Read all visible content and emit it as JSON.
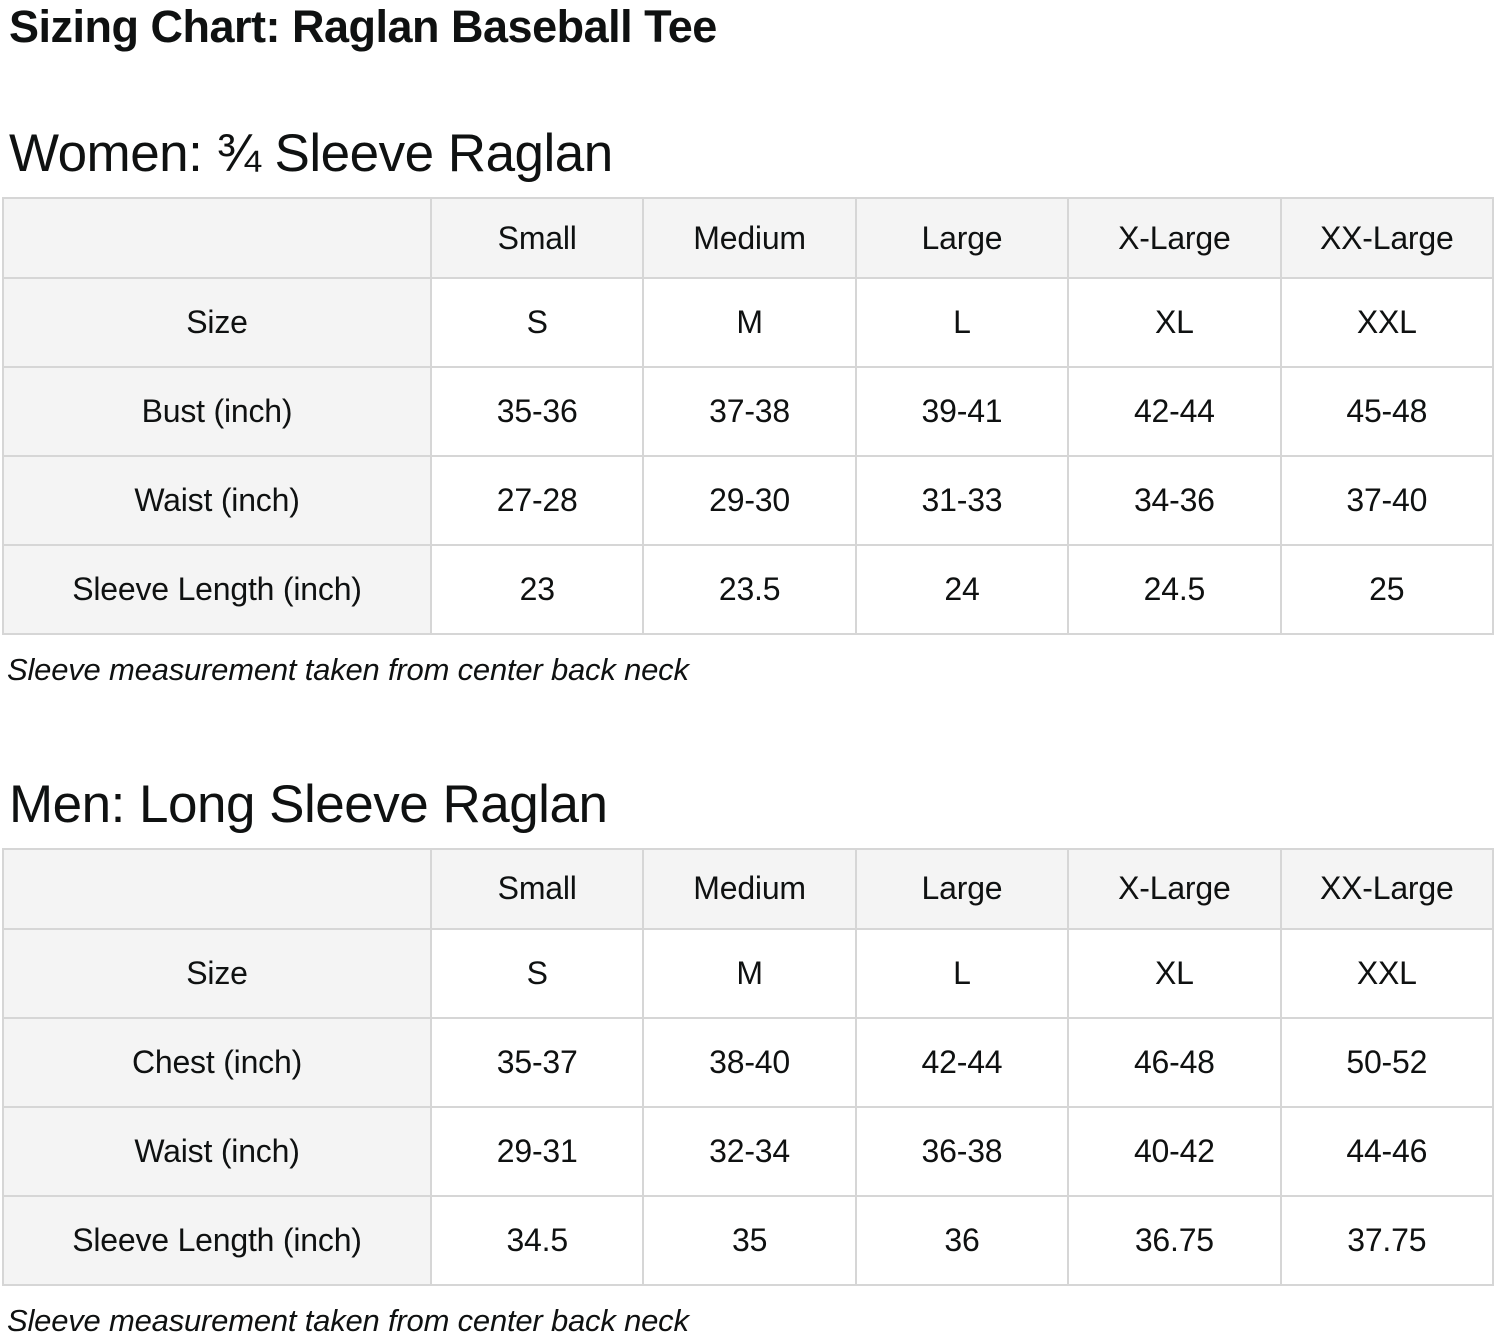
{
  "title": "Sizing Chart: Raglan Baseball Tee",
  "colors": {
    "text": "#0f1111",
    "header_cell_bg": "#f4f4f4",
    "table_border": "#d6d6d6",
    "page_bg": "#ffffff"
  },
  "sections": [
    {
      "heading": "Women: ¾ Sleeve Raglan",
      "note": "Sleeve measurement taken from center back neck",
      "table": {
        "columns": [
          "Small",
          "Medium",
          "Large",
          "X-Large",
          "XX-Large"
        ],
        "rows": [
          {
            "label": "Size",
            "values": [
              "S",
              "M",
              "L",
              "XL",
              "XXL"
            ]
          },
          {
            "label": "Bust (inch)",
            "values": [
              "35-36",
              "37-38",
              "39-41",
              "42-44",
              "45-48"
            ]
          },
          {
            "label": "Waist (inch)",
            "values": [
              "27-28",
              "29-30",
              "31-33",
              "34-36",
              "37-40"
            ]
          },
          {
            "label": "Sleeve Length (inch)",
            "values": [
              "23",
              "23.5",
              "24",
              "24.5",
              "25"
            ]
          }
        ]
      }
    },
    {
      "heading": "Men: Long Sleeve Raglan",
      "note": "Sleeve measurement taken from center back neck",
      "table": {
        "columns": [
          "Small",
          "Medium",
          "Large",
          "X-Large",
          "XX-Large"
        ],
        "rows": [
          {
            "label": "Size",
            "values": [
              "S",
              "M",
              "L",
              "XL",
              "XXL"
            ]
          },
          {
            "label": "Chest (inch)",
            "values": [
              "35-37",
              "38-40",
              "42-44",
              "46-48",
              "50-52"
            ]
          },
          {
            "label": "Waist (inch)",
            "values": [
              "29-31",
              "32-34",
              "36-38",
              "40-42",
              "44-46"
            ]
          },
          {
            "label": "Sleeve Length (inch)",
            "values": [
              "34.5",
              "35",
              "36",
              "36.75",
              "37.75"
            ]
          }
        ]
      }
    }
  ]
}
